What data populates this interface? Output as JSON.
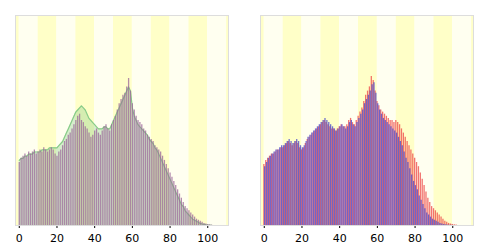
{
  "chart_data": [
    {
      "type": "bar",
      "tick_labels": "x",
      "grid": false,
      "xlim": [
        -2,
        111
      ],
      "xticks": [
        0,
        20,
        40,
        60,
        80,
        100
      ],
      "ylim": [
        0,
        100
      ],
      "x": [
        0,
        1,
        2,
        3,
        4,
        5,
        6,
        7,
        8,
        9,
        10,
        11,
        12,
        13,
        14,
        15,
        16,
        17,
        18,
        19,
        20,
        21,
        22,
        23,
        24,
        25,
        26,
        27,
        28,
        29,
        30,
        31,
        32,
        33,
        34,
        35,
        36,
        37,
        38,
        39,
        40,
        41,
        42,
        43,
        44,
        45,
        46,
        47,
        48,
        49,
        50,
        51,
        52,
        53,
        54,
        55,
        56,
        57,
        58,
        59,
        60,
        61,
        62,
        63,
        64,
        65,
        66,
        67,
        68,
        69,
        70,
        71,
        72,
        73,
        74,
        75,
        76,
        77,
        78,
        79,
        80,
        81,
        82,
        83,
        84,
        85,
        86,
        87,
        88,
        89,
        90,
        91,
        92,
        93,
        94,
        95,
        96,
        97,
        98,
        99,
        100,
        101,
        102
      ],
      "series": [
        {
          "type": "area",
          "color": "#88cc88",
          "values": [
            31,
            32,
            32,
            33,
            33,
            34,
            34,
            34,
            35,
            35,
            35,
            35,
            36,
            36,
            36,
            36,
            37,
            37,
            37,
            37,
            37,
            38,
            39,
            40,
            42,
            44,
            46,
            48,
            50,
            52,
            54,
            55,
            56,
            57,
            56,
            55,
            53,
            51,
            50,
            49,
            48,
            47,
            46,
            46,
            46,
            47,
            47,
            46,
            46,
            48,
            50,
            52,
            54,
            56,
            58,
            60,
            62,
            64,
            66,
            64,
            56,
            52,
            50,
            48,
            47,
            46,
            45,
            44,
            43,
            41,
            40,
            39,
            37,
            36,
            34,
            32,
            30,
            28,
            26,
            24,
            22,
            20,
            18,
            16,
            14,
            12,
            10,
            9,
            7,
            6,
            5,
            4,
            3,
            2.5,
            2,
            1.5,
            1,
            0.7,
            0.5,
            0.3,
            0.2,
            0.1,
            0.1
          ]
        },
        {
          "type": "bar",
          "color": "#996699",
          "values": [
            30,
            32,
            33,
            34,
            33,
            35,
            34,
            35,
            36,
            34,
            35,
            36,
            35,
            37,
            36,
            35,
            36,
            37,
            36,
            34,
            33,
            35,
            36,
            38,
            40,
            41,
            43,
            44,
            46,
            48,
            50,
            52,
            53,
            50,
            49,
            47,
            46,
            44,
            42,
            43,
            45,
            46,
            44,
            43,
            45,
            47,
            48,
            46,
            45,
            48,
            50,
            52,
            55,
            58,
            60,
            62,
            63,
            66,
            70,
            64,
            58,
            55,
            52,
            50,
            49,
            48,
            46,
            45,
            43,
            42,
            41,
            40,
            38,
            37,
            36,
            35,
            33,
            31,
            29,
            27,
            25,
            23,
            21,
            19,
            17,
            15,
            13,
            11,
            9,
            8,
            7,
            6,
            5,
            4,
            3,
            2.5,
            2,
            1.5,
            1,
            0.7,
            0.5,
            0.3,
            0.2
          ]
        }
      ]
    },
    {
      "type": "bar",
      "tick_labels": "x",
      "grid": false,
      "xlim": [
        -2,
        111
      ],
      "xticks": [
        0,
        20,
        40,
        60,
        80,
        100
      ],
      "ylim": [
        0,
        100
      ],
      "x": [
        0,
        1,
        2,
        3,
        4,
        5,
        6,
        7,
        8,
        9,
        10,
        11,
        12,
        13,
        14,
        15,
        16,
        17,
        18,
        19,
        20,
        21,
        22,
        23,
        24,
        25,
        26,
        27,
        28,
        29,
        30,
        31,
        32,
        33,
        34,
        35,
        36,
        37,
        38,
        39,
        40,
        41,
        42,
        43,
        44,
        45,
        46,
        47,
        48,
        49,
        50,
        51,
        52,
        53,
        54,
        55,
        56,
        57,
        58,
        59,
        60,
        61,
        62,
        63,
        64,
        65,
        66,
        67,
        68,
        69,
        70,
        71,
        72,
        73,
        74,
        75,
        76,
        77,
        78,
        79,
        80,
        81,
        82,
        83,
        84,
        85,
        86,
        87,
        88,
        89,
        90,
        91,
        92,
        93,
        94,
        95,
        96,
        97,
        98,
        99,
        100,
        101,
        102
      ],
      "series": [
        {
          "type": "bar",
          "color": "#ee4444",
          "values": [
            29,
            31,
            32,
            33,
            34,
            34,
            35,
            36,
            36,
            37,
            37,
            38,
            39,
            40,
            39,
            38,
            39,
            40,
            39,
            37,
            36,
            37,
            39,
            41,
            42,
            43,
            44,
            45,
            46,
            47,
            48,
            49,
            50,
            49,
            48,
            47,
            46,
            46,
            45,
            46,
            47,
            48,
            47,
            47,
            48,
            50,
            51,
            49,
            48,
            50,
            52,
            54,
            56,
            59,
            62,
            64,
            66,
            71,
            69,
            64,
            59,
            57,
            55,
            54,
            53,
            52,
            51,
            50,
            50,
            49,
            50,
            49,
            48,
            46,
            44,
            42,
            40,
            38,
            36,
            34,
            32,
            30,
            28,
            25,
            22,
            19,
            16,
            13,
            11,
            9,
            8,
            7,
            6,
            5,
            4,
            3,
            2,
            1.5,
            1,
            0.7,
            0.5,
            0.3,
            0.2
          ]
        },
        {
          "type": "bar",
          "color": "#4444cc",
          "values": [
            28,
            30,
            32,
            33,
            34,
            35,
            36,
            36,
            37,
            38,
            38,
            39,
            40,
            41,
            40,
            39,
            40,
            41,
            40,
            38,
            37,
            38,
            40,
            42,
            43,
            44,
            45,
            46,
            47,
            48,
            49,
            50,
            51,
            50,
            49,
            48,
            47,
            46,
            45,
            46,
            47,
            48,
            47,
            46,
            47,
            49,
            50,
            48,
            47,
            49,
            51,
            53,
            55,
            58,
            60,
            62,
            64,
            67,
            68,
            63,
            58,
            55,
            53,
            51,
            50,
            49,
            48,
            47,
            46,
            45,
            44,
            42,
            40,
            38,
            35,
            32,
            30,
            27,
            24,
            21,
            19,
            17,
            14,
            12,
            10,
            8,
            6,
            5,
            4,
            3,
            2.5,
            2,
            1.5,
            1,
            0.7,
            0.5,
            0.3,
            0.2,
            0.1,
            0.1,
            0,
            0,
            0
          ]
        }
      ]
    }
  ]
}
